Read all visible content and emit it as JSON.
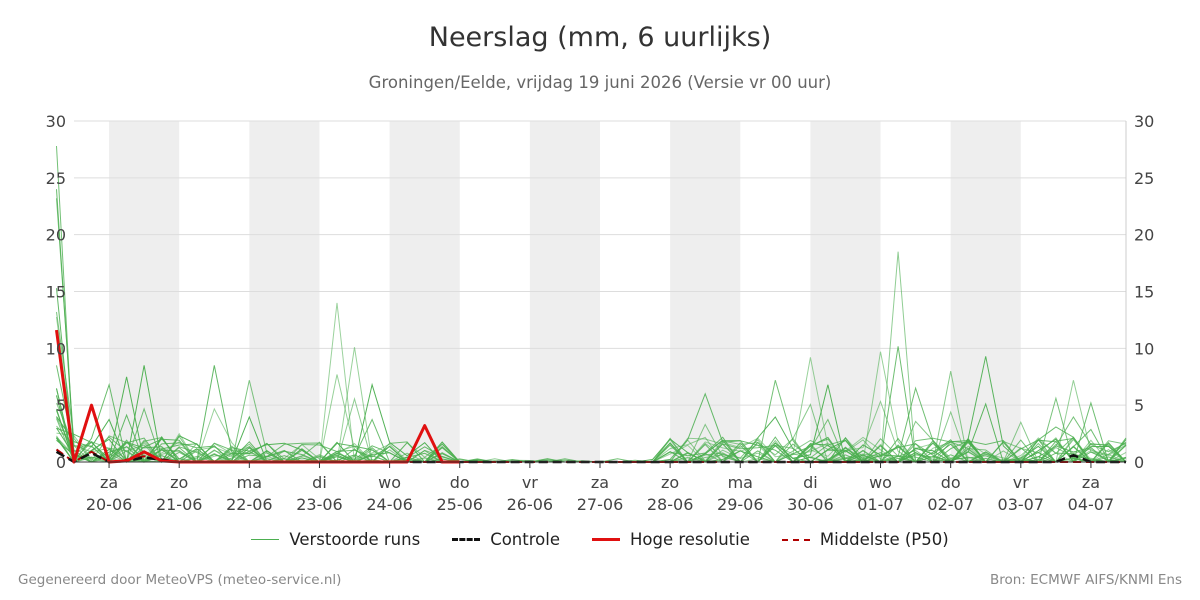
{
  "chart_data": {
    "type": "line",
    "title": "Neerslag (mm, 6 uurlijks)",
    "subtitle": "Groningen/Eelde, vrijdag 19 juni 2026 (Versie vr 00 uur)",
    "ylim": [
      0,
      30
    ],
    "yticks": [
      0,
      5,
      10,
      15,
      20,
      25,
      30
    ],
    "xlim": [
      -0.5,
      14.5
    ],
    "grid": true,
    "legend_position": "bottom",
    "xticks": [
      {
        "day": "za",
        "date": "20-06"
      },
      {
        "day": "zo",
        "date": "21-06"
      },
      {
        "day": "ma",
        "date": "22-06"
      },
      {
        "day": "di",
        "date": "23-06"
      },
      {
        "day": "wo",
        "date": "24-06"
      },
      {
        "day": "do",
        "date": "25-06"
      },
      {
        "day": "vr",
        "date": "26-06"
      },
      {
        "day": "za",
        "date": "27-06"
      },
      {
        "day": "zo",
        "date": "28-06"
      },
      {
        "day": "ma",
        "date": "29-06"
      },
      {
        "day": "di",
        "date": "30-06"
      },
      {
        "day": "wo",
        "date": "01-07"
      },
      {
        "day": "do",
        "date": "02-07"
      },
      {
        "day": "vr",
        "date": "03-07"
      },
      {
        "day": "za",
        "date": "04-07"
      }
    ],
    "hoge_resolutie": {
      "x": [
        -0.75,
        -0.5,
        -0.25,
        0,
        0.25,
        0.5,
        0.75,
        1.0,
        1.5,
        2.5,
        3.5,
        4.25,
        4.5,
        4.75,
        5.0
      ],
      "values": [
        11.6,
        0,
        5.0,
        0,
        0.1,
        0.9,
        0.1,
        0,
        0,
        0,
        0,
        0,
        3.2,
        0,
        0
      ]
    },
    "controle": {
      "x": [
        -0.75,
        -0.5,
        -0.25,
        0,
        0.25,
        0.5,
        1.0,
        5.0,
        10.0,
        13.5,
        13.75,
        14.0,
        14.5
      ],
      "values": [
        0.9,
        0,
        0.8,
        0,
        0.1,
        0.4,
        0,
        0,
        0,
        0,
        0.6,
        0,
        0
      ]
    },
    "p50": {
      "x": [
        -0.75,
        -0.5,
        -0.25,
        0,
        0.25,
        0.5,
        1.0,
        5.0,
        10.0,
        14.0,
        14.5
      ],
      "values": [
        1.1,
        0,
        0.9,
        0,
        0.2,
        0.5,
        0,
        0,
        0,
        0,
        0
      ]
    },
    "verstoorde_runs_peaks": [
      {
        "x": -0.75,
        "value": 27.8
      },
      {
        "x": -0.75,
        "value": 24.0
      },
      {
        "x": -0.75,
        "value": 23.2
      },
      {
        "x": -0.75,
        "value": 8.5
      },
      {
        "x": 0.0,
        "value": 6.8
      },
      {
        "x": 0.25,
        "value": 7.5
      },
      {
        "x": 0.5,
        "value": 8.5
      },
      {
        "x": 1.5,
        "value": 8.5
      },
      {
        "x": 2.0,
        "value": 7.2
      },
      {
        "x": 3.25,
        "value": 14.0
      },
      {
        "x": 3.5,
        "value": 10.1
      },
      {
        "x": 3.75,
        "value": 6.8
      },
      {
        "x": 8.5,
        "value": 6.0
      },
      {
        "x": 9.5,
        "value": 7.2
      },
      {
        "x": 10.0,
        "value": 9.2
      },
      {
        "x": 10.25,
        "value": 6.8
      },
      {
        "x": 11.0,
        "value": 9.7
      },
      {
        "x": 11.25,
        "value": 18.5
      },
      {
        "x": 11.5,
        "value": 6.5
      },
      {
        "x": 12.0,
        "value": 8.0
      },
      {
        "x": 12.5,
        "value": 9.3
      },
      {
        "x": 13.0,
        "value": 3.5
      },
      {
        "x": 13.5,
        "value": 5.6
      },
      {
        "x": 13.75,
        "value": 7.2
      },
      {
        "x": 14.0,
        "value": 5.2
      }
    ],
    "shaded_days": [
      0,
      2,
      4,
      6,
      8,
      10,
      12
    ],
    "colors": {
      "verstoorde_runs": "#4caf50",
      "controle": "#111111",
      "hoge_resolutie": "#e01010",
      "p50": "#b00000",
      "shade": "#eeeeee",
      "grid": "#dddddd"
    },
    "legend": [
      {
        "key": "verstoorde_runs",
        "label": "Verstoorde runs",
        "style": "thin"
      },
      {
        "key": "controle",
        "label": "Controle",
        "style": "dashed"
      },
      {
        "key": "hoge_resolutie",
        "label": "Hoge resolutie",
        "style": "thick"
      },
      {
        "key": "p50",
        "label": "Middelste (P50)",
        "style": "dashed-thin"
      }
    ]
  },
  "footer": {
    "left": "Gegenereerd door MeteoVPS (meteo-service.nl)",
    "right": "Bron: ECMWF AIFS/KNMI Ens"
  }
}
